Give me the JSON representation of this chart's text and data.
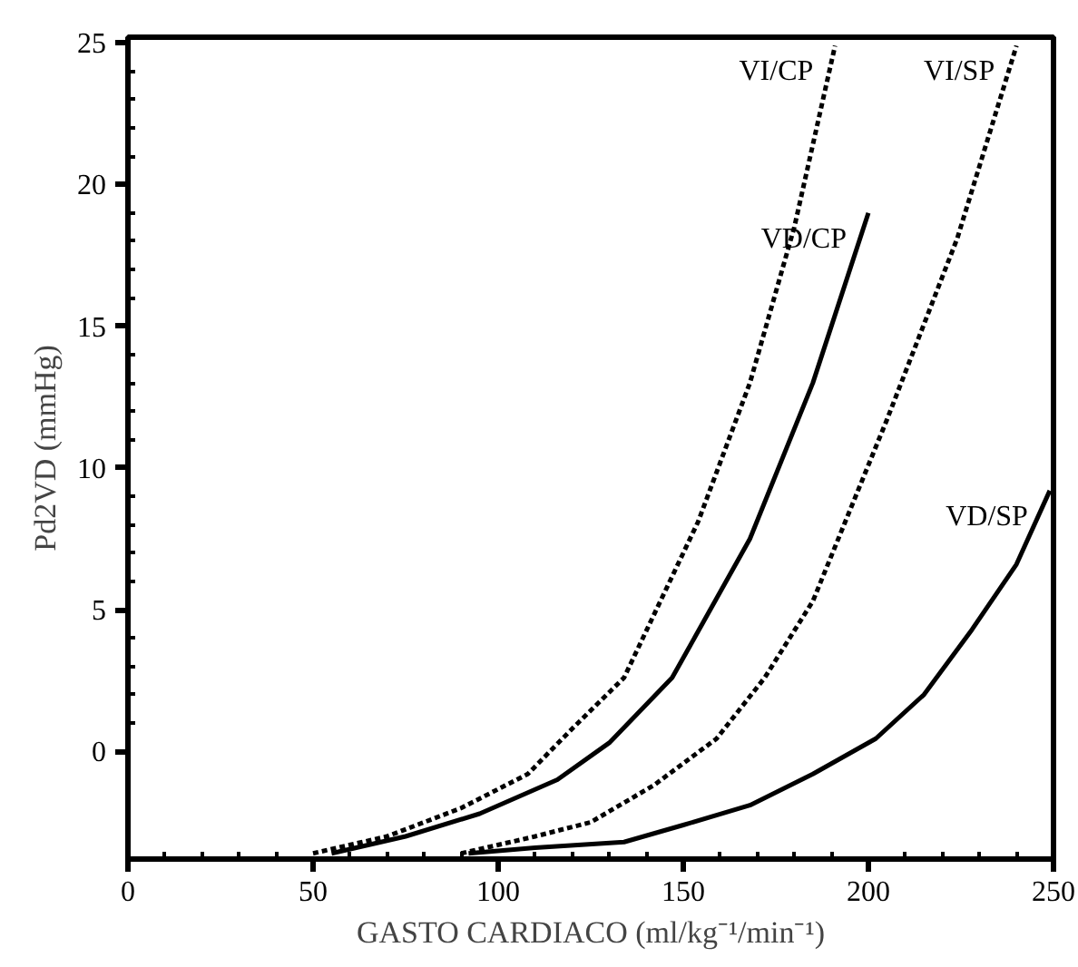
{
  "chart_data": {
    "type": "line",
    "xlabel": "GASTO CARDIACO (ml/kg⁻¹/min⁻¹)",
    "ylabel": "Pd2VD (mmHg)",
    "xlim": [
      0,
      250
    ],
    "ylim": [
      -3.8,
      25.2
    ],
    "xticks": [
      0,
      50,
      100,
      150,
      200,
      250
    ],
    "yticks": [
      0,
      5,
      10,
      15,
      20,
      25
    ],
    "grid": false,
    "legend": false,
    "marker": "none",
    "series": [
      {
        "name": "VI/CP",
        "color": "#000000",
        "line_style": "dotted",
        "x": [
          50,
          70,
          90,
          108,
          120,
          134,
          154,
          168,
          180,
          191
        ],
        "values": [
          -3.6,
          -3.0,
          -2.0,
          -0.8,
          0.8,
          2.6,
          8.1,
          13,
          18.5,
          24.9
        ]
      },
      {
        "name": "VD/CP",
        "color": "#000000",
        "line_style": "solid",
        "x": [
          55,
          75,
          95,
          116,
          130,
          147,
          168,
          185,
          200
        ],
        "values": [
          -3.6,
          -3.0,
          -2.2,
          -1.0,
          0.3,
          2.6,
          7.5,
          13,
          19
        ]
      },
      {
        "name": "VI/SP",
        "color": "#000000",
        "line_style": "dotted",
        "x": [
          90,
          110,
          125,
          142,
          159,
          172,
          185,
          205,
          224,
          240
        ],
        "values": [
          -3.6,
          -3.0,
          -2.5,
          -1.2,
          0.45,
          2.6,
          5.3,
          11.7,
          18.1,
          24.9
        ]
      },
      {
        "name": "VD/SP",
        "color": "#000000",
        "line_style": "solid",
        "x": [
          92,
          110,
          134,
          150,
          168,
          185,
          202,
          215,
          228,
          240,
          249
        ],
        "values": [
          -3.6,
          -3.4,
          -3.2,
          -2.6,
          -1.9,
          -0.8,
          0.45,
          2.0,
          4.3,
          6.6,
          9.2
        ]
      }
    ]
  }
}
